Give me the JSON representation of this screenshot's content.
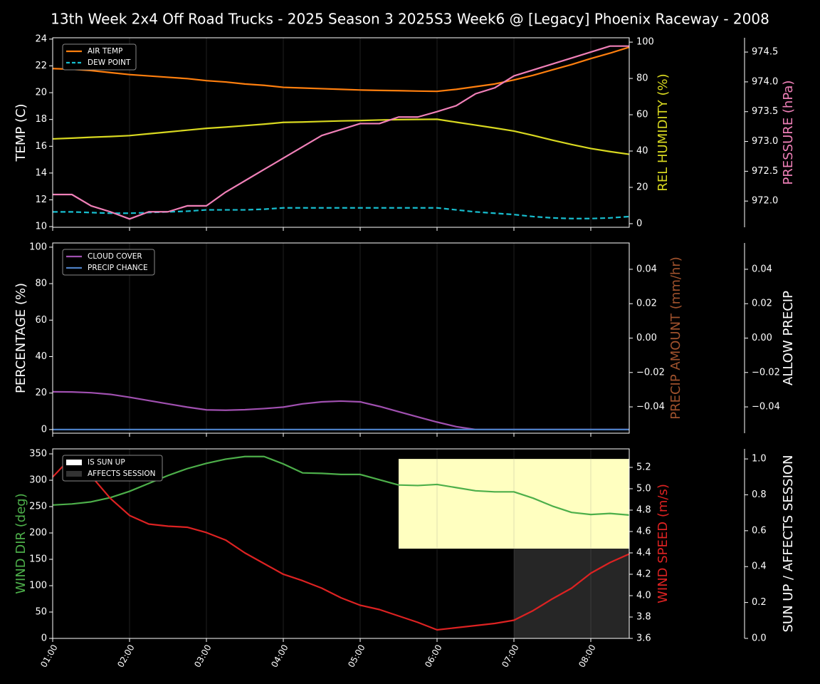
{
  "chart_data": [
    {
      "type": "line",
      "title": "13th Week 2x4 Off Road Trucks - 2025 Season 3 2025S3 Week6 @ [Legacy] Phoenix Raceway - 2008",
      "x": [
        1,
        1.25,
        1.5,
        1.75,
        2,
        2.25,
        2.5,
        2.75,
        3,
        3.25,
        3.5,
        3.75,
        4,
        4.25,
        4.5,
        4.75,
        5,
        5.25,
        5.5,
        5.75,
        6,
        6.25,
        6.5,
        6.75,
        7,
        7.25,
        7.5,
        7.75,
        8,
        8.25,
        8.5
      ],
      "xlim": [
        1,
        8.5
      ],
      "ylabel": "TEMP (C)",
      "ylabel_color": "#ffffff",
      "ylim": [
        9.95,
        24.1
      ],
      "yticks": [
        10,
        12,
        14,
        16,
        18,
        20,
        22,
        24
      ],
      "y2label": "REL HUMIDITY (%)",
      "y2label_color": "#d8d820",
      "y2lim": [
        -2,
        102.4
      ],
      "y2ticks": [
        0,
        20,
        40,
        60,
        80,
        100
      ],
      "y3label": "PRESSURE (hPa)",
      "y3label_color": "#f080b8",
      "y3lim": [
        971.56,
        974.74
      ],
      "y3ticks": [
        {
          "value": 972,
          "label": "972.0"
        },
        972.5,
        {
          "value": 973,
          "label": "973.0"
        },
        973.5,
        {
          "value": 974,
          "label": "974.0"
        },
        974.5
      ],
      "legend": "upper left",
      "series": [
        {
          "name": "AIR TEMP",
          "color": "#ff7f0e",
          "axis": "y",
          "values": [
            21.8,
            21.75,
            21.65,
            21.5,
            21.35,
            21.25,
            21.15,
            21.05,
            20.9,
            20.8,
            20.65,
            20.55,
            20.4,
            20.35,
            20.3,
            20.25,
            20.2,
            20.17,
            20.15,
            20.12,
            20.1,
            20.25,
            20.45,
            20.65,
            20.95,
            21.3,
            21.7,
            22.1,
            22.55,
            22.95,
            23.4
          ]
        },
        {
          "name": "DEW POINT",
          "color": "#17becf",
          "axis": "y",
          "style": "dashed",
          "values": [
            11.1,
            11.1,
            11.05,
            11.0,
            11.0,
            11.05,
            11.1,
            11.15,
            11.25,
            11.25,
            11.25,
            11.3,
            11.4,
            11.4,
            11.4,
            11.4,
            11.4,
            11.4,
            11.4,
            11.4,
            11.4,
            11.25,
            11.1,
            11.0,
            10.9,
            10.75,
            10.65,
            10.6,
            10.6,
            10.65,
            10.75
          ]
        },
        {
          "color": "#d8d820",
          "axis": "y2",
          "values": [
            46.7,
            47.1,
            47.6,
            48.0,
            48.5,
            49.5,
            50.5,
            51.5,
            52.5,
            53.2,
            54.0,
            54.8,
            55.8,
            56.0,
            56.3,
            56.6,
            56.8,
            57.1,
            57.3,
            57.4,
            57.5,
            55.9,
            54.3,
            52.7,
            51.0,
            48.6,
            46.0,
            43.6,
            41.4,
            39.7,
            38.2
          ]
        },
        {
          "color": "#f080b8",
          "axis": "y3",
          "values": [
            972.11,
            972.11,
            971.92,
            971.82,
            971.7,
            971.82,
            971.82,
            971.92,
            971.92,
            972.15,
            972.34,
            972.53,
            972.72,
            972.91,
            973.1,
            973.2,
            973.3,
            973.3,
            973.41,
            973.41,
            973.5,
            973.6,
            973.8,
            973.9,
            974.1,
            974.2,
            974.3,
            974.4,
            974.5,
            974.6,
            974.6
          ]
        }
      ]
    },
    {
      "type": "line",
      "x": [
        1,
        1.25,
        1.5,
        1.75,
        2,
        2.25,
        2.5,
        2.75,
        3,
        3.25,
        3.5,
        3.75,
        4,
        4.25,
        4.5,
        4.75,
        5,
        5.25,
        5.5,
        5.75,
        6,
        6.25,
        6.5,
        6.75,
        7,
        7.25,
        7.5,
        7.75,
        8,
        8.25,
        8.5
      ],
      "xlim": [
        1,
        8.5
      ],
      "ylabel": "PERCENTAGE (%)",
      "ylabel_color": "#ffffff",
      "ylim": [
        -2,
        102.3
      ],
      "yticks": [
        0,
        20,
        40,
        60,
        80,
        100
      ],
      "y2label": "PRECIP AMOUNT (mm/hr)",
      "y2label_color": "#a0522d",
      "y2lim": [
        -0.0553,
        0.0553
      ],
      "y2ticks": [
        {
          "value": -0.04,
          "label": "−0.04"
        },
        {
          "value": -0.02,
          "label": "−0.02"
        },
        {
          "value": 0,
          "label": "0.00"
        },
        0.02,
        0.04
      ],
      "y3label": "ALLOW PRECIP",
      "y3label_color": "#ffffff",
      "y3lim": [
        -0.0553,
        0.0553
      ],
      "y3ticks": [
        {
          "value": -0.04,
          "label": "−0.04"
        },
        {
          "value": -0.02,
          "label": "−0.02"
        },
        {
          "value": 0,
          "label": "0.00"
        },
        0.02,
        0.04
      ],
      "legend": "upper left",
      "series": [
        {
          "name": "CLOUD COVER",
          "color": "#a050b0",
          "axis": "y",
          "values": [
            20.7,
            20.6,
            20.2,
            19.3,
            17.7,
            15.9,
            14.1,
            12.3,
            10.8,
            10.6,
            10.9,
            11.5,
            12.3,
            14.1,
            15.2,
            15.6,
            15.2,
            12.7,
            9.8,
            6.9,
            4.1,
            1.6,
            0,
            0,
            0,
            0,
            0,
            0,
            0,
            0,
            0
          ]
        },
        {
          "name": "PRECIP CHANCE",
          "color": "#4c7fc4",
          "axis": "y",
          "values": [
            0,
            0,
            0,
            0,
            0,
            0,
            0,
            0,
            0,
            0,
            0,
            0,
            0,
            0,
            0,
            0,
            0,
            0,
            0,
            0,
            0,
            0,
            0,
            0,
            0,
            0,
            0,
            0,
            0,
            0,
            0
          ]
        }
      ]
    },
    {
      "type": "line",
      "x": [
        1,
        1.25,
        1.5,
        1.75,
        2,
        2.25,
        2.5,
        2.75,
        3,
        3.25,
        3.5,
        3.75,
        4,
        4.25,
        4.5,
        4.75,
        5,
        5.25,
        5.5,
        5.75,
        6,
        6.25,
        6.5,
        6.75,
        7,
        7.25,
        7.5,
        7.75,
        8,
        8.25,
        8.5
      ],
      "xlim": [
        1,
        8.5
      ],
      "xticks": [
        {
          "value": 1,
          "label": "01:00"
        },
        {
          "value": 2,
          "label": "02:00"
        },
        {
          "value": 3,
          "label": "03:00"
        },
        {
          "value": 4,
          "label": "04:00"
        },
        {
          "value": 5,
          "label": "05:00"
        },
        {
          "value": 6,
          "label": "06:00"
        },
        {
          "value": 7,
          "label": "07:00"
        },
        {
          "value": 8,
          "label": "08:00"
        }
      ],
      "ylabel": "WIND DIR (deg)",
      "ylabel_color": "#4daf4a",
      "ylim": [
        0,
        359.5
      ],
      "yticks": [
        0,
        50,
        100,
        150,
        200,
        250,
        300,
        350
      ],
      "y2label": "WIND SPEED (m/s)",
      "y2label_color": "#dd2222",
      "y2lim": [
        3.6,
        5.373
      ],
      "y2ticks": [
        3.6,
        3.8,
        {
          "value": 4,
          "label": "4.0"
        },
        4.2,
        4.4,
        4.6,
        4.8,
        {
          "value": 5,
          "label": "5.0"
        },
        5.2
      ],
      "y3label": "SUN UP / AFFECTS SESSION",
      "y3label_color": "#ffffff",
      "y3lim": [
        0,
        1.056
      ],
      "y3ticks": [
        {
          "value": 0,
          "label": "0.0"
        },
        0.2,
        0.4,
        0.6,
        0.8,
        {
          "value": 1,
          "label": "1.0"
        }
      ],
      "legend": "upper left",
      "series": [
        {
          "name": "IS SUN UP",
          "color": "#ffffc0",
          "axis": "y3",
          "style": "fill-upper",
          "values": [
            0,
            0,
            0,
            0,
            0,
            0,
            0,
            0,
            0,
            0,
            0,
            0,
            0,
            0,
            0,
            0,
            0,
            0,
            1,
            1,
            1,
            1,
            1,
            1,
            1,
            1,
            1,
            1,
            1,
            1,
            1
          ]
        },
        {
          "name": "AFFECTS SESSION",
          "color": "#262626",
          "axis": "y3",
          "style": "fill-lower",
          "values": [
            0,
            0,
            0,
            0,
            0,
            0,
            0,
            0,
            0,
            0,
            0,
            0,
            0,
            0,
            0,
            0,
            0,
            0,
            0,
            0,
            0,
            0,
            0,
            0,
            1,
            1,
            1,
            1,
            1,
            1,
            1
          ]
        },
        {
          "color": "#4daf4a",
          "axis": "y",
          "values": [
            253,
            255,
            259,
            267,
            279,
            294,
            309,
            322,
            332,
            340,
            345,
            345,
            331,
            314,
            313,
            311,
            311,
            301,
            291,
            290,
            292,
            286,
            280,
            278,
            278,
            266,
            251,
            239,
            235,
            237,
            234
          ]
        },
        {
          "color": "#dd2222",
          "axis": "y2",
          "values": [
            5.11,
            5.3,
            5.12,
            4.91,
            4.75,
            4.67,
            4.65,
            4.64,
            4.59,
            4.52,
            4.4,
            4.3,
            4.2,
            4.14,
            4.07,
            3.98,
            3.91,
            3.87,
            3.81,
            3.75,
            3.68,
            3.7,
            3.72,
            3.74,
            3.77,
            3.86,
            3.97,
            4.07,
            4.21,
            4.31,
            4.39
          ]
        }
      ]
    }
  ]
}
